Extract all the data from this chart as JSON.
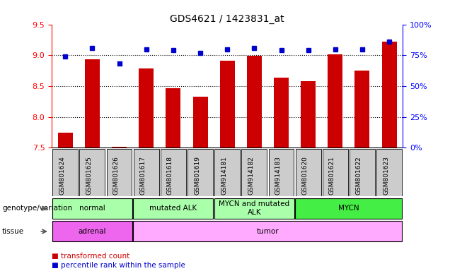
{
  "title": "GDS4621 / 1423831_at",
  "samples": [
    "GSM801624",
    "GSM801625",
    "GSM801626",
    "GSM801617",
    "GSM801618",
    "GSM801619",
    "GSM914181",
    "GSM914182",
    "GSM914183",
    "GSM801620",
    "GSM801621",
    "GSM801622",
    "GSM801623"
  ],
  "bar_values": [
    7.74,
    8.93,
    7.51,
    8.78,
    8.47,
    8.33,
    8.91,
    8.99,
    8.64,
    8.58,
    9.01,
    8.75,
    9.22
  ],
  "dot_values": [
    74,
    81,
    68,
    80,
    79,
    77,
    80,
    81,
    79,
    79,
    80,
    80,
    86
  ],
  "ylim_left": [
    7.5,
    9.5
  ],
  "ylim_right": [
    0,
    100
  ],
  "yticks_left": [
    7.5,
    8.0,
    8.5,
    9.0,
    9.5
  ],
  "yticks_right": [
    0,
    25,
    50,
    75,
    100
  ],
  "ytick_labels_right": [
    "0%",
    "25%",
    "50%",
    "75%",
    "100%"
  ],
  "bar_color": "#cc0000",
  "dot_color": "#0000cc",
  "bar_bottom": 7.5,
  "groups_order": [
    {
      "key": "normal",
      "samples": [
        "GSM801624",
        "GSM801625",
        "GSM801626"
      ],
      "color": "#aaffaa",
      "label": "normal"
    },
    {
      "key": "mutated_ALK",
      "samples": [
        "GSM801617",
        "GSM801618",
        "GSM801619"
      ],
      "color": "#aaffaa",
      "label": "mutated ALK"
    },
    {
      "key": "MYCN_and_mutated_ALK",
      "samples": [
        "GSM914181",
        "GSM914182",
        "GSM914183"
      ],
      "color": "#aaffaa",
      "label": "MYCN and mutated\nALK"
    },
    {
      "key": "MYCN",
      "samples": [
        "GSM801620",
        "GSM801621",
        "GSM801622",
        "GSM801623"
      ],
      "color": "#44ee44",
      "label": "MYCN"
    }
  ],
  "tissue_order": [
    {
      "key": "adrenal",
      "samples": [
        "GSM801624",
        "GSM801625",
        "GSM801626"
      ],
      "color": "#ee66ee",
      "label": "adrenal"
    },
    {
      "key": "tumor",
      "samples": [
        "GSM801617",
        "GSM801618",
        "GSM801619",
        "GSM914181",
        "GSM914182",
        "GSM914183",
        "GSM801620",
        "GSM801621",
        "GSM801622",
        "GSM801623"
      ],
      "color": "#ffaaff",
      "label": "tumor"
    }
  ],
  "xtick_bg_color": "#cccccc",
  "grid_dotted_color": "#000000",
  "legend_transformed_color": "#cc0000",
  "legend_percentile_color": "#0000cc",
  "row_label_genotype": "genotype/variation",
  "row_label_tissue": "tissue"
}
